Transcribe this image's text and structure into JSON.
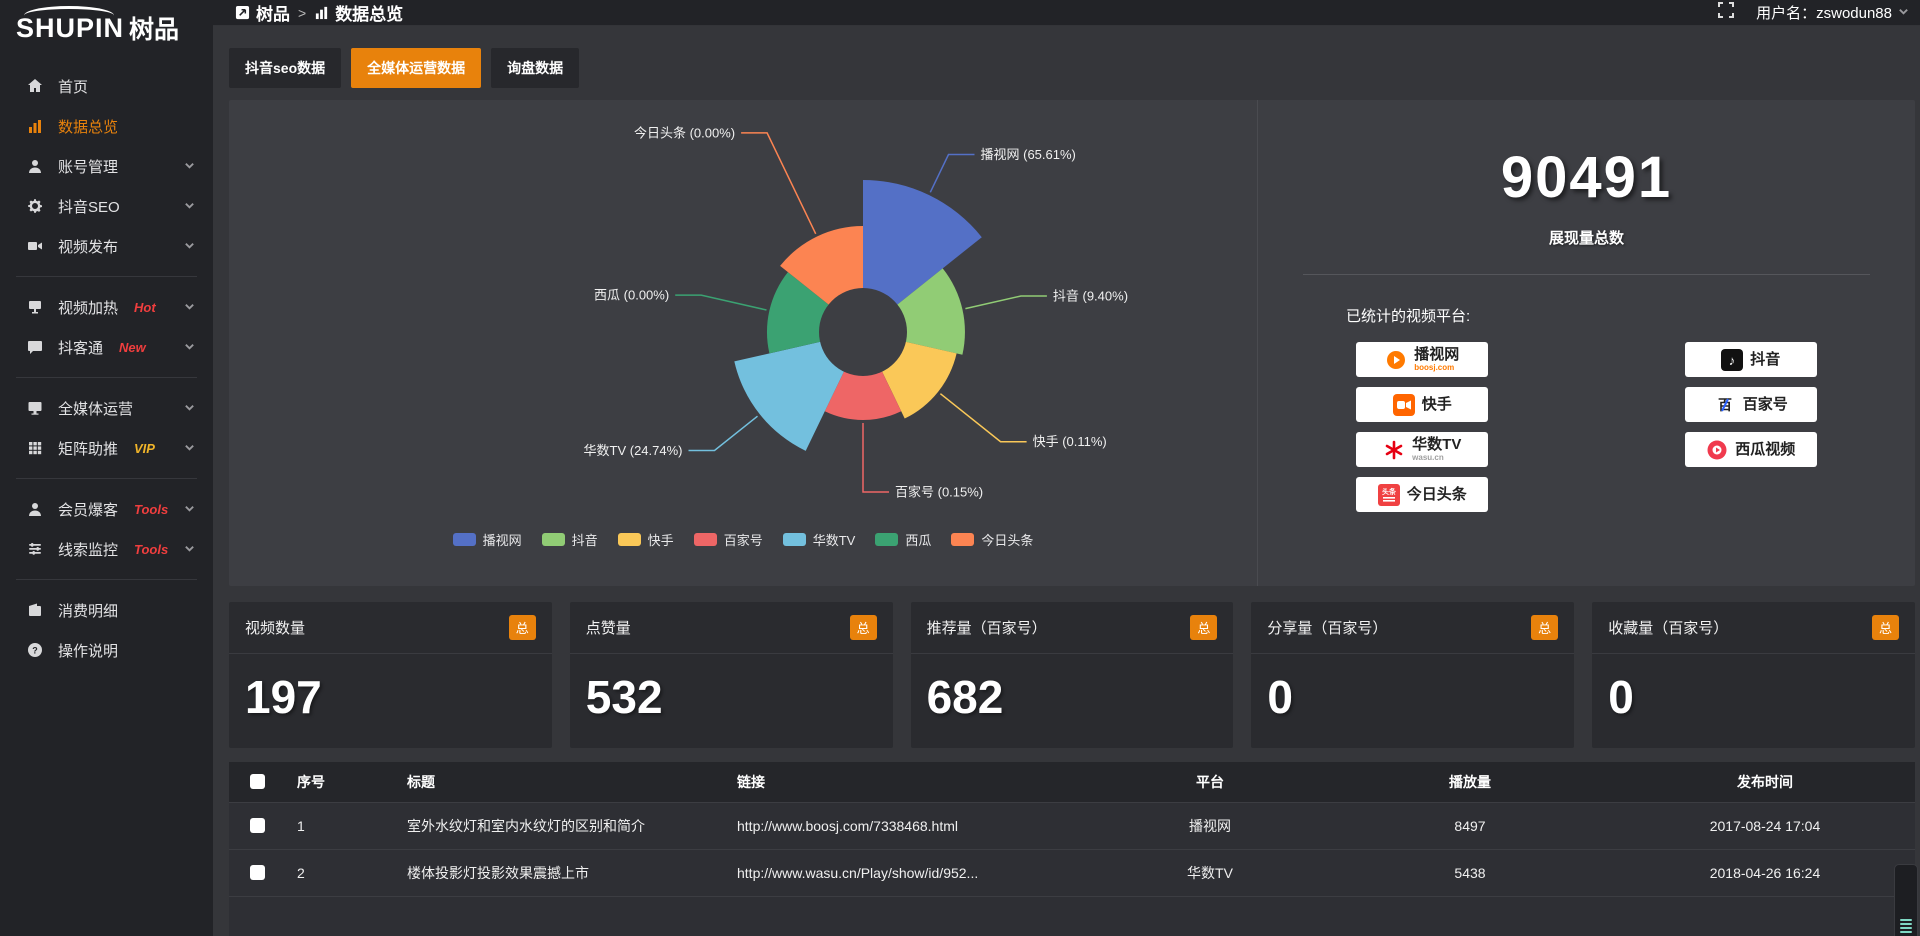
{
  "logo": {
    "brand_latin": "SHUPIN",
    "brand_cjk": "树品"
  },
  "topbar": {
    "breadcrumb": [
      {
        "label": "树品",
        "icon": "dashboard-icon"
      },
      {
        "label": "数据总览",
        "icon": "bar-chart-icon"
      }
    ],
    "username": "用户名：zswodun88"
  },
  "sidebar": {
    "items": [
      {
        "label": "首页",
        "icon": "home-icon",
        "chevron": false,
        "active": false,
        "badge": "",
        "divider_after": false
      },
      {
        "label": "数据总览",
        "icon": "data-overview-icon",
        "chevron": false,
        "active": true,
        "badge": "",
        "divider_after": false
      },
      {
        "label": "账号管理",
        "icon": "account-icon",
        "chevron": true,
        "active": false,
        "badge": "",
        "divider_after": false
      },
      {
        "label": "抖音SEO",
        "icon": "gear-icon",
        "chevron": true,
        "active": false,
        "badge": "",
        "divider_after": false
      },
      {
        "label": "视频发布",
        "icon": "video-publish-icon",
        "chevron": true,
        "active": false,
        "badge": "",
        "divider_after": true
      },
      {
        "label": "视频加热",
        "icon": "video-heat-icon",
        "chevron": true,
        "active": false,
        "badge": "Hot",
        "badge_style": "red",
        "divider_after": false
      },
      {
        "label": "抖客通",
        "icon": "chat-icon",
        "chevron": true,
        "active": false,
        "badge": "New",
        "badge_style": "red",
        "divider_after": true
      },
      {
        "label": "全媒体运营",
        "icon": "monitor-icon",
        "chevron": true,
        "active": false,
        "badge": "",
        "divider_after": false
      },
      {
        "label": "矩阵助推",
        "icon": "grid-icon",
        "chevron": true,
        "active": false,
        "badge": "VIP",
        "badge_style": "gold",
        "divider_after": true
      },
      {
        "label": "会员爆客",
        "icon": "member-icon",
        "chevron": true,
        "active": false,
        "badge": "Tools",
        "badge_style": "red",
        "divider_after": false
      },
      {
        "label": "线索监控",
        "icon": "sliders-icon",
        "chevron": true,
        "active": false,
        "badge": "Tools",
        "badge_style": "red",
        "divider_after": true
      },
      {
        "label": "消费明细",
        "icon": "wallet-icon",
        "chevron": false,
        "active": false,
        "badge": "",
        "divider_after": false
      },
      {
        "label": "操作说明",
        "icon": "help-icon",
        "chevron": false,
        "active": false,
        "badge": "",
        "divider_after": false
      }
    ]
  },
  "tabs": [
    {
      "label": "抖音seo数据",
      "active": false
    },
    {
      "label": "全媒体运营数据",
      "active": true
    },
    {
      "label": "询盘数据",
      "active": false
    }
  ],
  "chart_data": {
    "type": "pie",
    "style": "nightingale-rose",
    "legend_position": "bottom",
    "inner_radius": 44,
    "items": [
      {
        "label": "播视网",
        "percent": 65.61,
        "color": "#5470c6",
        "radius": 152,
        "label_len": 45
      },
      {
        "label": "抖音",
        "percent": 9.4,
        "color": "#91cc75",
        "radius": 102,
        "label_len": 60
      },
      {
        "label": "快手",
        "percent": 0.11,
        "color": "#fac858",
        "radius": 96,
        "label_len": 80
      },
      {
        "label": "百家号",
        "percent": 0.15,
        "color": "#ee6666",
        "radius": 88,
        "label_len": 72
      },
      {
        "label": "华数TV",
        "percent": 24.74,
        "color": "#73c0de",
        "radius": 132,
        "label_len": 58
      },
      {
        "label": "西瓜",
        "percent": 0.0,
        "color": "#3ba272",
        "radius": 96,
        "label_len": 70
      },
      {
        "label": "今日头条",
        "percent": 0.0,
        "color": "#fc8452",
        "radius": 106,
        "label_len": 115
      }
    ]
  },
  "summary": {
    "total": "90491",
    "total_label": "展现量总数",
    "platforms_label": "已统计的视频平台:",
    "columns": [
      [
        {
          "name": "播视网",
          "sub": "boosj.com",
          "sub_color": "#ff7a00",
          "icon": "boosj-icon"
        },
        {
          "name": "快手",
          "sub": "",
          "icon": "kuaishou-icon"
        },
        {
          "name": "华数TV",
          "sub": "wasu.cn",
          "sub_color": "#a0a0a0",
          "icon": "wasu-icon"
        },
        {
          "name": "今日头条",
          "sub": "",
          "icon": "toutiao-icon"
        }
      ],
      [
        {
          "name": "抖音",
          "sub": "",
          "icon": "douyin-icon"
        },
        {
          "name": "百家号",
          "sub": "",
          "icon": "baijiahao-icon"
        },
        {
          "name": "西瓜视频",
          "sub": "",
          "icon": "xigua-icon"
        }
      ]
    ]
  },
  "cards": [
    {
      "title": "视频数量",
      "badge": "总",
      "value": "197"
    },
    {
      "title": "点赞量",
      "badge": "总",
      "value": "532"
    },
    {
      "title": "推荐量（百家号）",
      "badge": "总",
      "value": "682"
    },
    {
      "title": "分享量（百家号）",
      "badge": "总",
      "value": "0"
    },
    {
      "title": "收藏量（百家号）",
      "badge": "总",
      "value": "0"
    }
  ],
  "table": {
    "headers": {
      "no": "序号",
      "title": "标题",
      "link": "链接",
      "platform": "平台",
      "plays": "播放量",
      "time": "发布时间"
    },
    "rows": [
      {
        "no": "1",
        "title": "室外水纹灯和室内水纹灯的区别和简介",
        "link": "http://www.boosj.com/7338468.html",
        "platform": "播视网",
        "plays": "8497",
        "time": "2017-08-24 17:04"
      },
      {
        "no": "2",
        "title": "楼体投影灯投影效果震撼上市",
        "link": "http://www.wasu.cn/Play/show/id/952...",
        "platform": "华数TV",
        "plays": "5438",
        "time": "2018-04-26 16:24"
      },
      {
        "no": "",
        "title": "",
        "link": "",
        "platform": "",
        "plays": "",
        "time": ""
      }
    ]
  },
  "colors": {
    "accent": "#e8820c",
    "sidebar_bg": "#222327",
    "panel_bg": "#3d3e43",
    "page_bg": "#35363a"
  }
}
